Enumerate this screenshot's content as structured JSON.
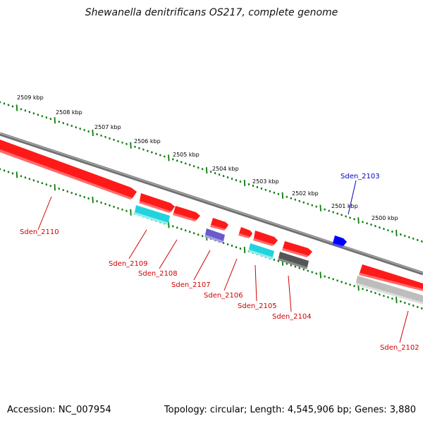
{
  "title": "Shewanella denitrificans OS217, complete genome",
  "footer": {
    "accession": "Accession: NC_007954",
    "stats": "Topology: circular; Length: 4,545,906 bp; Genes: 3,880"
  },
  "colors": {
    "forward_gene": "#ff0000",
    "reverse_rna": "#00c8d0",
    "pseudo": "#555555",
    "misc": "#6a5acd",
    "selected": "#0000ff",
    "ruler": "#0a7a0a",
    "backbone": "#808080"
  },
  "ruler_labels": [
    "2509 kbp",
    "2508 kbp",
    "2507 kbp",
    "2506 kbp",
    "2505 kbp",
    "2504 kbp",
    "2503 kbp",
    "2502 kbp",
    "2501 kbp",
    "2500 kbp"
  ],
  "genes": [
    {
      "label": "Sden_2110",
      "color": "#d00000"
    },
    {
      "label": "Sden_2109",
      "color": "#d00000"
    },
    {
      "label": "Sden_2108",
      "color": "#d00000"
    },
    {
      "label": "Sden_2107",
      "color": "#d00000"
    },
    {
      "label": "Sden_2106",
      "color": "#d00000"
    },
    {
      "label": "Sden_2105",
      "color": "#d00000"
    },
    {
      "label": "Sden_2104",
      "color": "#d00000"
    },
    {
      "label": "Sden_2103",
      "color": "#0000cc"
    },
    {
      "label": "Sden_2102",
      "color": "#d00000"
    }
  ]
}
